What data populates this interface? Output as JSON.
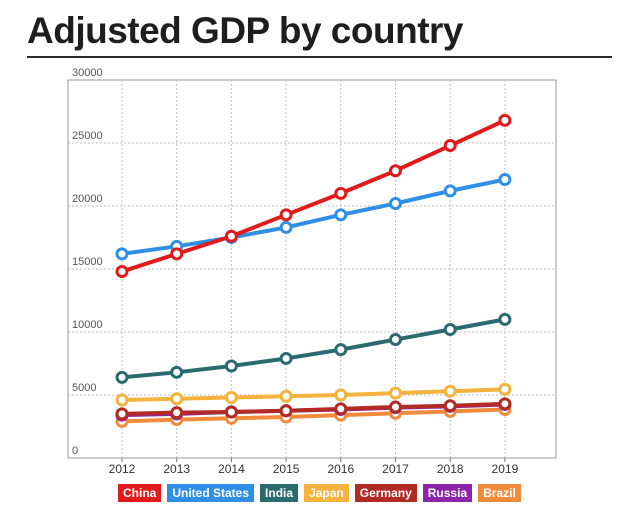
{
  "chart_data": {
    "type": "line",
    "title": "Adjusted GDP by country",
    "xlabel": "",
    "ylabel": "",
    "x": [
      "2012",
      "2013",
      "2014",
      "2015",
      "2016",
      "2017",
      "2018",
      "2019"
    ],
    "ylim": [
      0,
      30000
    ],
    "yticks": [
      "0",
      "5000",
      "10000",
      "15000",
      "20000",
      "25000",
      "30000"
    ],
    "grid": true,
    "legend_position": "bottom",
    "series": [
      {
        "name": "China",
        "color": "#e31a1c",
        "values": [
          14800,
          16200,
          17600,
          19300,
          21000,
          22800,
          24800,
          26800
        ]
      },
      {
        "name": "United States",
        "color": "#2f8ee6",
        "values": [
          16200,
          16800,
          17500,
          18300,
          19300,
          20200,
          21200,
          22100
        ]
      },
      {
        "name": "India",
        "color": "#2b6b6f",
        "values": [
          6400,
          6800,
          7300,
          7900,
          8600,
          9400,
          10200,
          11000
        ]
      },
      {
        "name": "Japan",
        "color": "#f5b23d",
        "values": [
          4600,
          4700,
          4800,
          4900,
          5000,
          5150,
          5300,
          5450
        ]
      },
      {
        "name": "Germany",
        "color": "#b22a24",
        "values": [
          3500,
          3600,
          3650,
          3750,
          3900,
          4050,
          4150,
          4300
        ]
      },
      {
        "name": "Russia",
        "color": "#8e24aa",
        "values": [
          3400,
          3500,
          3650,
          3750,
          3850,
          4000,
          4100,
          4250
        ]
      },
      {
        "name": "Brazil",
        "color": "#f08b3c",
        "values": [
          2900,
          3050,
          3150,
          3250,
          3400,
          3550,
          3700,
          3850
        ]
      }
    ]
  }
}
